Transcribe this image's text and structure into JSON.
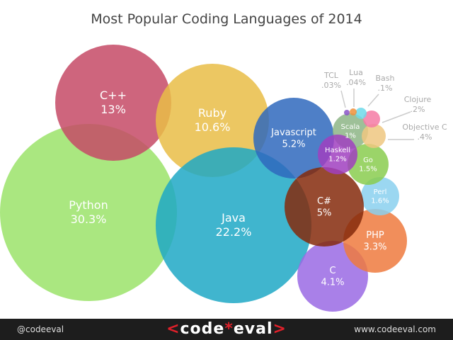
{
  "chart_data": {
    "type": "bubble",
    "title": "Most Popular Coding Languages of 2014",
    "items": [
      {
        "name": "Python",
        "label": "30.3%",
        "value": 30.3,
        "color": "#9be36a"
      },
      {
        "name": "C++",
        "label": "13%",
        "value": 13,
        "color": "#c54a66"
      },
      {
        "name": "Ruby",
        "label": "10.6%",
        "value": 10.6,
        "color": "#e9bd46"
      },
      {
        "name": "Java",
        "label": "22.2%",
        "value": 22.2,
        "color": "#1fa8c6"
      },
      {
        "name": "Javascript",
        "label": "5.2%",
        "value": 5.2,
        "color": "#2f68bd"
      },
      {
        "name": "C",
        "label": "4.1%",
        "value": 4.1,
        "color": "#9a6ae4"
      },
      {
        "name": "PHP",
        "label": "3.3%",
        "value": 3.3,
        "color": "#ee7a3e"
      },
      {
        "name": "Perl",
        "label": "1.6%",
        "value": 1.6,
        "color": "#8ad0ee"
      },
      {
        "name": "Go",
        "label": "1.5%",
        "value": 1.5,
        "color": "#8acd4f"
      },
      {
        "name": "C#",
        "label": "5%",
        "value": 5,
        "color": "#852a0c"
      },
      {
        "name": "Scala",
        "label": "1%",
        "value": 1,
        "color": "#8db586"
      },
      {
        "name": "Haskell",
        "label": "1.2%",
        "value": 1.2,
        "color": "#a040c0"
      },
      {
        "name": "Objective C",
        "label": ".4%",
        "value": 0.4,
        "color": "#eec780"
      },
      {
        "name": "Clojure",
        "label": ".2%",
        "value": 0.2,
        "color": "#f57aa5"
      },
      {
        "name": "Bash",
        "label": ".1%",
        "value": 0.1,
        "color": "#6dd9ea"
      },
      {
        "name": "Lua",
        "label": ".04%",
        "value": 0.04,
        "color": "#f0913a"
      },
      {
        "name": "TCL",
        "label": ".03%",
        "value": 0.03,
        "color": "#8a55c8"
      }
    ]
  },
  "footer": {
    "handle": "@codeeval",
    "logo": "<codeeval>",
    "url": "www.codeeval.com"
  }
}
